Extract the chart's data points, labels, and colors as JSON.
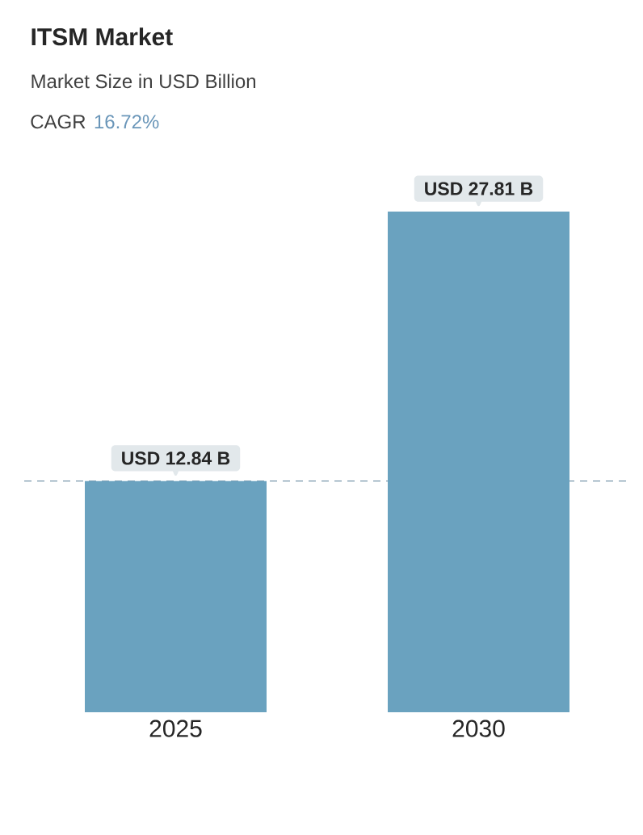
{
  "chart_data": {
    "type": "bar",
    "title": "ITSM Market",
    "subtitle": "Market Size in USD Billion",
    "annotations": [
      "CAGR",
      "16.72%"
    ],
    "categories": [
      "2025",
      "2030"
    ],
    "values": [
      12.84,
      27.81
    ],
    "value_labels": [
      "USD 12.84 B",
      "USD 27.81 B"
    ],
    "color": "#6aa2bf",
    "ref_lines": [
      {
        "axis": "y",
        "value": 12.84,
        "color": "#5a7f99",
        "line_style": "dashed"
      }
    ]
  }
}
